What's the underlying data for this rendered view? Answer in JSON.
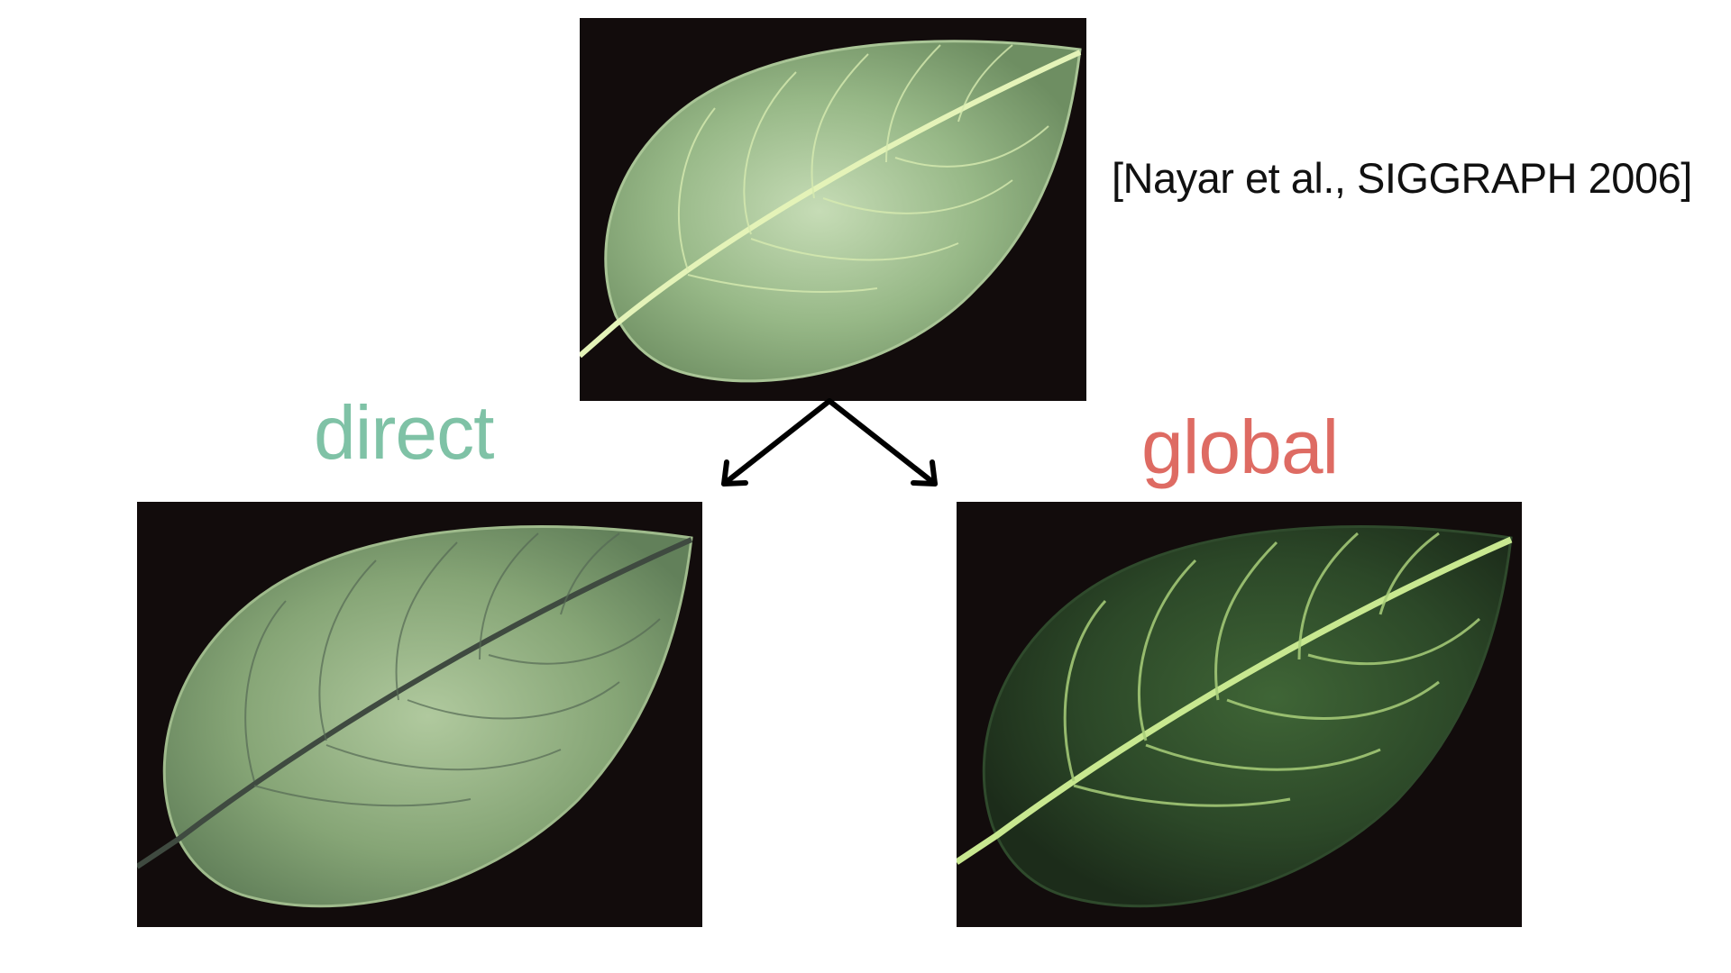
{
  "slide": {
    "citation": "[Nayar et al., SIGGRAPH 2006]",
    "labels": {
      "direct": "direct",
      "global": "global"
    }
  },
  "colors": {
    "direct_label": "#7fc2a6",
    "global_label": "#de6b63",
    "photo_background": "#120c0c",
    "arrow": "#000000",
    "leaf_top": "#8fb07c",
    "leaf_direct": "#7f9f6e",
    "leaf_global": "#2e4a2a",
    "vein_glow": "#c8e890",
    "vein_dark": "#3c4a3c"
  },
  "images": {
    "top": {
      "subject": "leaf-photo-full"
    },
    "direct": {
      "subject": "leaf-photo-direct-component"
    },
    "global": {
      "subject": "leaf-photo-global-component"
    }
  }
}
